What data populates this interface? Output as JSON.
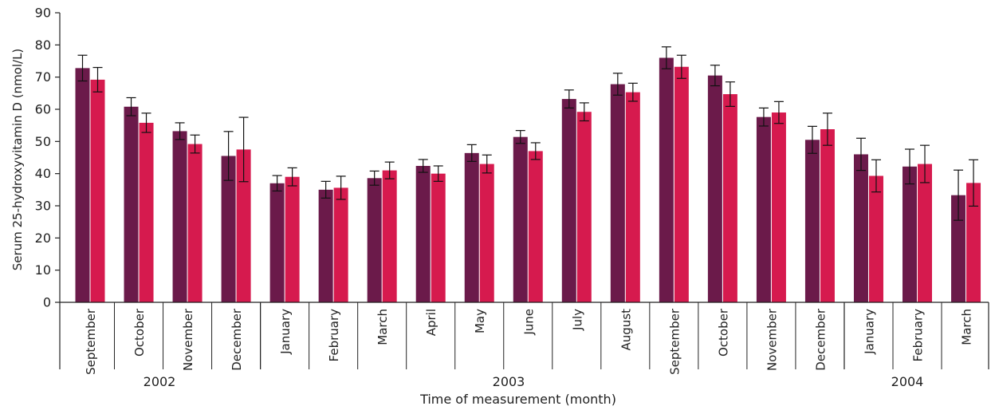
{
  "chart_data": {
    "type": "bar",
    "xlabel": "Time of measurement (month)",
    "ylabel": "Serum 25-hydroxyvitamin D (nmol/L)",
    "ylim": [
      0,
      90
    ],
    "yticks": [
      "0",
      "10",
      "20",
      "30",
      "40",
      "50",
      "60",
      "70",
      "80",
      "90"
    ],
    "grid": false,
    "categories": [
      "September",
      "October",
      "November",
      "December",
      "January",
      "February",
      "March",
      "April",
      "May",
      "June",
      "July",
      "August",
      "September",
      "October",
      "November",
      "December",
      "January",
      "February",
      "March"
    ],
    "years": [
      {
        "label": "2002",
        "start": 0,
        "end": 4
      },
      {
        "label": "2003",
        "start": 4,
        "end": 16
      },
      {
        "label": "2004",
        "start": 16,
        "end": 19
      }
    ],
    "series": [
      {
        "color": "#6b1a4a",
        "values": [
          72.8,
          60.8,
          53.2,
          45.5,
          37.0,
          35.0,
          38.6,
          42.4,
          46.4,
          51.4,
          63.2,
          67.8,
          76.0,
          70.5,
          57.6,
          50.5,
          46.0,
          42.2,
          33.3
        ],
        "err": [
          4.0,
          2.8,
          2.6,
          7.6,
          2.4,
          2.6,
          2.2,
          2.0,
          2.6,
          2.0,
          2.8,
          3.4,
          3.4,
          3.2,
          2.8,
          4.2,
          5.0,
          5.4,
          7.8
        ]
      },
      {
        "color": "#d61a4e",
        "values": [
          69.2,
          55.8,
          49.2,
          47.5,
          39.0,
          35.6,
          41.0,
          40.0,
          43.0,
          47.0,
          59.2,
          65.3,
          73.2,
          64.7,
          59.0,
          53.8,
          39.3,
          43.0,
          37.1
        ],
        "err": [
          3.8,
          3.0,
          2.8,
          10.0,
          2.8,
          3.6,
          2.6,
          2.4,
          2.8,
          2.6,
          2.8,
          2.8,
          3.6,
          3.8,
          3.4,
          5.0,
          5.0,
          5.8,
          7.2
        ]
      }
    ]
  }
}
